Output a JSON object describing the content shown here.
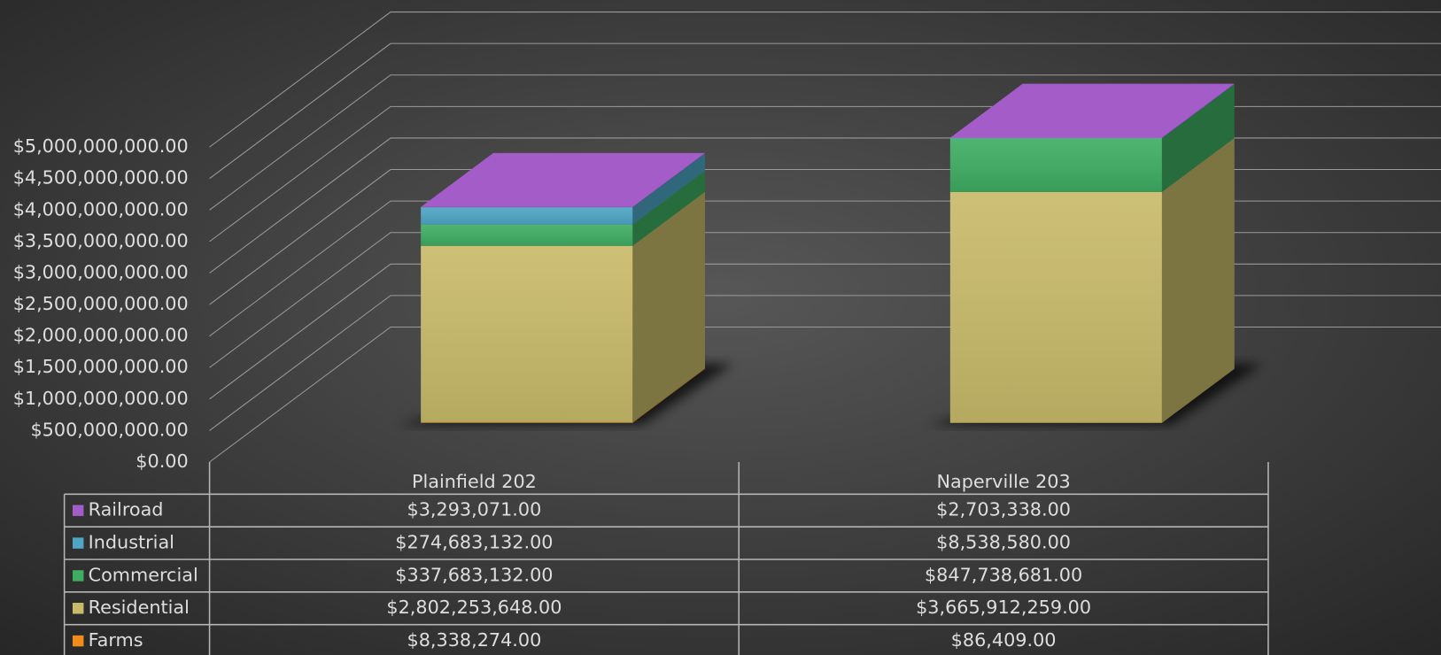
{
  "chart_data": {
    "type": "bar3d_stacked",
    "categories": [
      "Plainfield 202",
      "Naperville 203"
    ],
    "series": [
      {
        "name": "Farms",
        "color": "#f08c1c",
        "values": [
          8338274,
          86409
        ],
        "value_labels": [
          "$8,338,274.00",
          "$86,409.00"
        ]
      },
      {
        "name": "Residential",
        "color": "#c9bb6a",
        "values": [
          2802253648,
          3665912259
        ],
        "value_labels": [
          "$2,802,253,648.00",
          "$3,665,912,259.00"
        ]
      },
      {
        "name": "Commercial",
        "color": "#3fae63",
        "values": [
          337683132,
          847738681
        ],
        "value_labels": [
          "$337,683,132.00",
          "$847,738,681.00"
        ]
      },
      {
        "name": "Industrial",
        "color": "#4fa6c6",
        "values": [
          274683132,
          8538580
        ],
        "value_labels": [
          "$274,683,132.00",
          "$8,538,580.00"
        ]
      },
      {
        "name": "Railroad",
        "color": "#a45cc8",
        "values": [
          3293071,
          2703338
        ],
        "value_labels": [
          "$3,293,071.00",
          "$2,703,338.00"
        ]
      }
    ],
    "ylim": [
      0,
      5000000000
    ],
    "yticks": [
      {
        "value": 0,
        "label": "$0.00"
      },
      {
        "value": 500000000,
        "label": "$500,000,000.00"
      },
      {
        "value": 1000000000,
        "label": "$1,000,000,000.00"
      },
      {
        "value": 1500000000,
        "label": "$1,500,000,000.00"
      },
      {
        "value": 2000000000,
        "label": "$2,000,000,000.00"
      },
      {
        "value": 2500000000,
        "label": "$2,500,000,000.00"
      },
      {
        "value": 3000000000,
        "label": "$3,000,000,000.00"
      },
      {
        "value": 3500000000,
        "label": "$3,500,000,000.00"
      },
      {
        "value": 4000000000,
        "label": "$4,000,000,000.00"
      },
      {
        "value": 4500000000,
        "label": "$4,500,000,000.00"
      },
      {
        "value": 5000000000,
        "label": "$5,000,000,000.00"
      }
    ],
    "grid": true,
    "legend": "table"
  }
}
